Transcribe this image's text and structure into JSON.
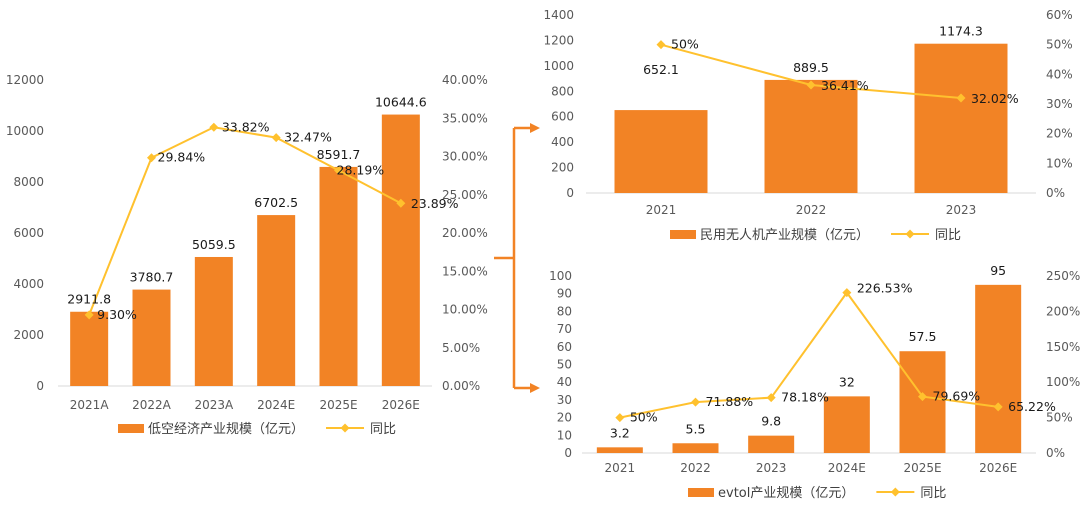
{
  "colors": {
    "bar": "#F28325",
    "line": "#FFC12E",
    "arrow": "#F28325"
  },
  "chart_data": [
    {
      "id": "low-altitude",
      "type": "bar",
      "title": "",
      "categories": [
        "2021A",
        "2022A",
        "2023A",
        "2024E",
        "2025E",
        "2026E"
      ],
      "series": [
        {
          "name": "低空经济产业规模（亿元）",
          "type": "bar",
          "axis": "left",
          "values": [
            2911.8,
            3780.7,
            5059.5,
            6702.5,
            8591.7,
            10644.6
          ],
          "labels": [
            "2911.8",
            "3780.7",
            "5059.5",
            "6702.5",
            "8591.7",
            "10644.6"
          ]
        },
        {
          "name": "同比",
          "type": "line",
          "axis": "right",
          "values": [
            9.3,
            29.84,
            33.82,
            32.47,
            28.19,
            23.89
          ],
          "labels": [
            "9.30%",
            "29.84%",
            "33.82%",
            "32.47%",
            "28.19%",
            "23.89%"
          ]
        }
      ],
      "ylim": [
        0,
        12000
      ],
      "yticks": [
        "0",
        "2000",
        "4000",
        "6000",
        "8000",
        "10000",
        "12000"
      ],
      "y2lim": [
        0,
        40
      ],
      "y2ticks": [
        "0.00%",
        "5.00%",
        "10.00%",
        "15.00%",
        "20.00%",
        "25.00%",
        "30.00%",
        "35.00%",
        "40.00%"
      ],
      "legend": {
        "bar": "低空经济产业规模（亿元）",
        "line": "同比",
        "position": "bottom"
      }
    },
    {
      "id": "civil-drone",
      "type": "bar",
      "title": "",
      "categories": [
        "2021",
        "2022",
        "2023"
      ],
      "series": [
        {
          "name": "民用无人机产业规模（亿元）",
          "type": "bar",
          "axis": "left",
          "values": [
            652.1,
            889.5,
            1174.3
          ],
          "labels": [
            "652.1",
            "889.5",
            "1174.3"
          ]
        },
        {
          "name": "同比",
          "type": "line",
          "axis": "right",
          "values": [
            50,
            36.41,
            32.02
          ],
          "labels": [
            "50%",
            "36.41%",
            "32.02%"
          ]
        }
      ],
      "ylim": [
        0,
        1400
      ],
      "yticks": [
        "0",
        "200",
        "400",
        "600",
        "800",
        "1000",
        "1200",
        "1400"
      ],
      "y2lim": [
        0,
        60
      ],
      "y2ticks": [
        "0%",
        "10%",
        "20%",
        "30%",
        "40%",
        "50%",
        "60%"
      ],
      "legend": {
        "bar": "民用无人机产业规模（亿元）",
        "line": "同比",
        "position": "bottom"
      }
    },
    {
      "id": "evtol",
      "type": "bar",
      "title": "",
      "categories": [
        "2021",
        "2022",
        "2023",
        "2024E",
        "2025E",
        "2026E"
      ],
      "series": [
        {
          "name": "evtol产业规模（亿元）",
          "type": "bar",
          "axis": "left",
          "values": [
            3.2,
            5.5,
            9.8,
            32,
            57.5,
            95
          ],
          "labels": [
            "3.2",
            "5.5",
            "9.8",
            "32",
            "57.5",
            "95"
          ]
        },
        {
          "name": "同比",
          "type": "line",
          "axis": "right",
          "values": [
            50,
            71.88,
            78.18,
            226.53,
            79.69,
            65.22
          ],
          "labels": [
            "50%",
            "71.88%",
            "78.18%",
            "226.53%",
            "79.69%",
            "65.22%"
          ]
        }
      ],
      "ylim": [
        0,
        100
      ],
      "yticks": [
        "0",
        "10",
        "20",
        "30",
        "40",
        "50",
        "60",
        "70",
        "80",
        "90",
        "100"
      ],
      "y2lim": [
        0,
        250
      ],
      "y2ticks": [
        "0%",
        "50%",
        "100%",
        "150%",
        "200%",
        "250%"
      ],
      "legend": {
        "bar": "evtol产业规模（亿元）",
        "line": "同比",
        "position": "bottom"
      }
    }
  ]
}
